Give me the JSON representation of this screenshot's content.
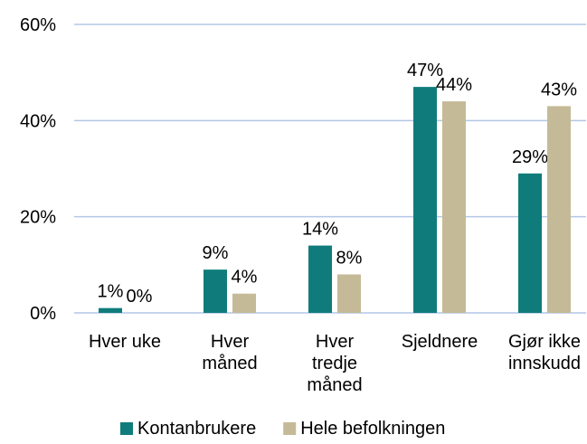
{
  "chart_data": {
    "type": "bar",
    "categories": [
      [
        "Hver uke"
      ],
      [
        "Hver",
        "måned"
      ],
      [
        "Hver",
        "tredje",
        "måned"
      ],
      [
        "Sjeldnere"
      ],
      [
        "Gjør ikke",
        "innskudd"
      ]
    ],
    "series": [
      {
        "name": "Kontanbrukere",
        "color": "#0f7c7b",
        "values": [
          1,
          9,
          14,
          47,
          29
        ],
        "value_labels": [
          "1%",
          "9%",
          "14%",
          "47%",
          "29%"
        ]
      },
      {
        "name": "Hele befolkningen",
        "color": "#c5ba97",
        "values": [
          0,
          4,
          8,
          44,
          43
        ],
        "value_labels": [
          "0%",
          "4%",
          "8%",
          "44%",
          "43%"
        ]
      }
    ],
    "ylim": [
      0,
      60
    ],
    "yticks": [
      {
        "value": 0,
        "label": "0%"
      },
      {
        "value": 20,
        "label": "20%"
      },
      {
        "value": 40,
        "label": "40%"
      },
      {
        "value": 60,
        "label": "60%"
      }
    ],
    "grid": true,
    "legend": "bottom"
  }
}
